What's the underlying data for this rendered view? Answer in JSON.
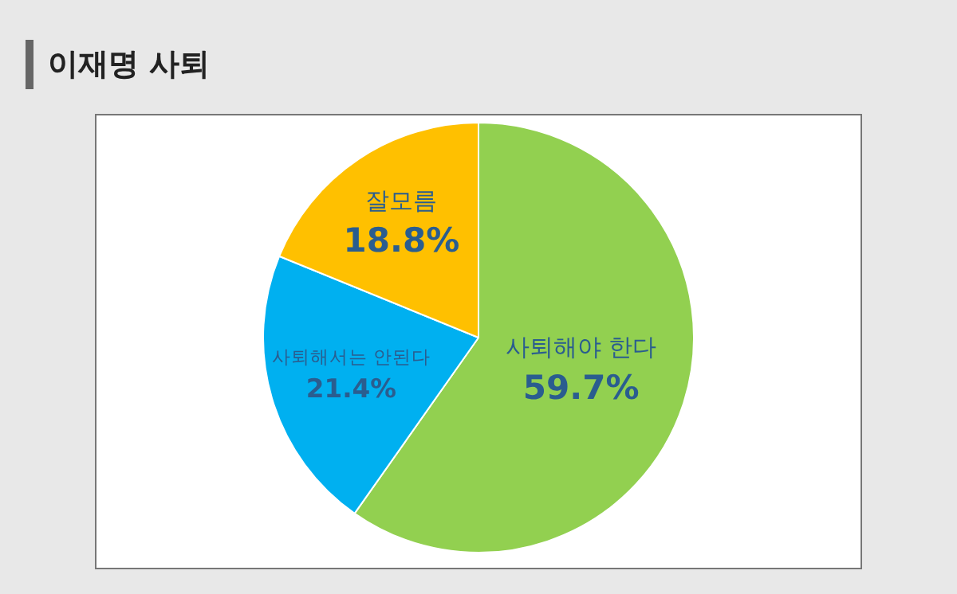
{
  "chart_data": {
    "type": "pie",
    "title": "이재명 사퇴",
    "categories": [
      "사퇴해야 한다",
      "사퇴해서는 안된다",
      "잘모름"
    ],
    "values": [
      59.7,
      21.4,
      18.8
    ],
    "value_labels": [
      "59.7%",
      "21.4%",
      "18.8%"
    ],
    "colors": [
      "#92d050",
      "#00b0f0",
      "#ffc000"
    ],
    "legend": false
  }
}
